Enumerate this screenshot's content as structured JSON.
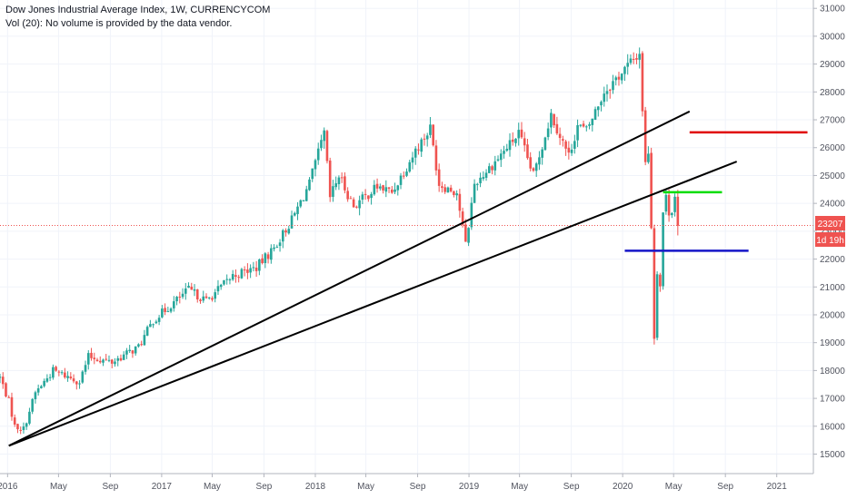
{
  "header": {
    "title": "Dow Jones Industrial Average Index, 1W, CURRENCYCOM",
    "volume_note": "Vol (20): No volume is provided by the data vendor."
  },
  "price_tag": {
    "value": "23207",
    "countdown": "1d 19h"
  },
  "colors": {
    "up": "#26a69a",
    "down": "#ef5350",
    "grid": "#f0f3fa",
    "axis_line": "#b2b5be",
    "current_price_line": "#ef5350",
    "trend_lines": "#000000",
    "resistance_red": "#e00000",
    "level_green": "#00dd00",
    "support_blue": "#1515c8"
  },
  "chart_data": {
    "type": "candlestick",
    "title": "Dow Jones Industrial Average Index, 1W, CURRENCYCOM",
    "timeframe": "1W",
    "x_range": [
      "2015-12-14",
      "2021-03-29"
    ],
    "ylim": [
      14300,
      31300
    ],
    "y_ticks": [
      15000,
      16000,
      17000,
      18000,
      19000,
      20000,
      21000,
      22000,
      23000,
      24000,
      25000,
      26000,
      27000,
      28000,
      29000,
      30000,
      31000
    ],
    "x_ticks": [
      {
        "label": "2016",
        "date": "2016-01-01"
      },
      {
        "label": "May",
        "date": "2016-05-01"
      },
      {
        "label": "Sep",
        "date": "2016-09-01"
      },
      {
        "label": "2017",
        "date": "2017-01-01"
      },
      {
        "label": "May",
        "date": "2017-05-01"
      },
      {
        "label": "Sep",
        "date": "2017-09-01"
      },
      {
        "label": "2018",
        "date": "2018-01-01"
      },
      {
        "label": "May",
        "date": "2018-05-01"
      },
      {
        "label": "Sep",
        "date": "2018-09-01"
      },
      {
        "label": "2019",
        "date": "2019-01-01"
      },
      {
        "label": "May",
        "date": "2019-05-01"
      },
      {
        "label": "Sep",
        "date": "2019-09-01"
      },
      {
        "label": "2020",
        "date": "2020-01-01"
      },
      {
        "label": "May",
        "date": "2020-05-01"
      },
      {
        "label": "Sep",
        "date": "2020-09-01"
      },
      {
        "label": "2021",
        "date": "2021-01-01"
      }
    ],
    "weekly_close_anchors": [
      [
        "2015-12-14",
        17750
      ],
      [
        "2016-01-04",
        16900
      ],
      [
        "2016-01-18",
        16000
      ],
      [
        "2016-02-08",
        15900
      ],
      [
        "2016-03-07",
        17200
      ],
      [
        "2016-04-18",
        18000
      ],
      [
        "2016-06-20",
        17600
      ],
      [
        "2016-07-11",
        18500
      ],
      [
        "2016-09-05",
        18300
      ],
      [
        "2016-11-07",
        18850
      ],
      [
        "2016-12-12",
        19800
      ],
      [
        "2017-03-06",
        20900
      ],
      [
        "2017-04-17",
        20500
      ],
      [
        "2017-06-19",
        21400
      ],
      [
        "2017-08-14",
        21700
      ],
      [
        "2017-09-25",
        22400
      ],
      [
        "2017-11-06",
        23400
      ],
      [
        "2017-12-18",
        24700
      ],
      [
        "2018-01-22",
        26500
      ],
      [
        "2018-02-05",
        24200
      ],
      [
        "2018-02-26",
        25000
      ],
      [
        "2018-04-02",
        23900
      ],
      [
        "2018-05-28",
        24600
      ],
      [
        "2018-07-02",
        24400
      ],
      [
        "2018-08-27",
        25900
      ],
      [
        "2018-10-01",
        26700
      ],
      [
        "2018-10-22",
        24700
      ],
      [
        "2018-12-03",
        24400
      ],
      [
        "2018-12-24",
        22500
      ],
      [
        "2019-01-14",
        24700
      ],
      [
        "2019-03-04",
        25500
      ],
      [
        "2019-04-29",
        26500
      ],
      [
        "2019-06-03",
        25000
      ],
      [
        "2019-07-15",
        27200
      ],
      [
        "2019-08-26",
        25700
      ],
      [
        "2019-09-16",
        26800
      ],
      [
        "2019-10-07",
        26600
      ],
      [
        "2019-11-18",
        28000
      ],
      [
        "2019-12-30",
        28700
      ],
      [
        "2020-02-10",
        29400
      ],
      [
        "2020-02-24",
        25400
      ],
      [
        "2020-03-02",
        25900
      ],
      [
        "2020-03-09",
        23200
      ],
      [
        "2020-03-16",
        19200
      ],
      [
        "2020-03-23",
        21600
      ],
      [
        "2020-03-30",
        21050
      ],
      [
        "2020-04-06",
        23700
      ],
      [
        "2020-04-13",
        24200
      ],
      [
        "2020-04-20",
        23700
      ],
      [
        "2020-04-27",
        23800
      ],
      [
        "2020-05-04",
        24300
      ],
      [
        "2020-05-11",
        23200
      ]
    ],
    "annotations": [
      {
        "type": "trend_line",
        "color": "black",
        "from": [
          "2016-01-04",
          15300
        ],
        "to": [
          "2020-06-08",
          27300
        ]
      },
      {
        "type": "trend_line",
        "color": "black",
        "from": [
          "2016-01-04",
          15300
        ],
        "to": [
          "2020-09-28",
          25500
        ]
      },
      {
        "type": "horizontal_segment",
        "color": "red",
        "price": 26550,
        "from": "2020-06-08",
        "to": "2021-03-15"
      },
      {
        "type": "horizontal_segment",
        "color": "green",
        "price": 24400,
        "from": "2020-04-06",
        "to": "2020-08-24"
      },
      {
        "type": "horizontal_segment",
        "color": "blue",
        "price": 22300,
        "from": "2020-01-06",
        "to": "2020-10-26"
      }
    ],
    "current_price": 23207
  }
}
